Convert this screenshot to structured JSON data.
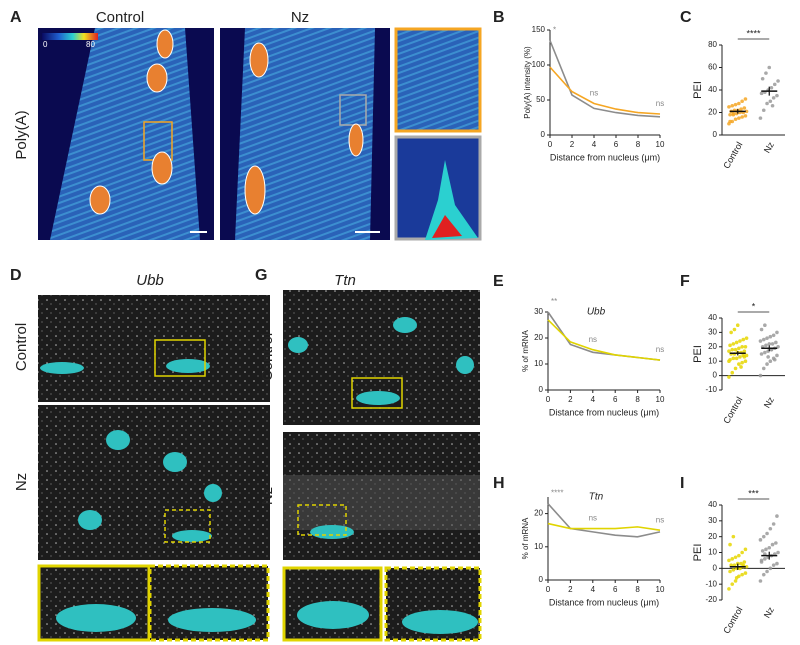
{
  "panel_labels": [
    "A",
    "B",
    "C",
    "D",
    "E",
    "F",
    "G",
    "H",
    "I"
  ],
  "figure_A": {
    "ylabel": "Poly(A)",
    "columns": [
      "Control",
      "Nz"
    ],
    "colorbar": [
      "0",
      "80"
    ]
  },
  "figure_D": {
    "title": "Ubb",
    "rows": [
      "Control",
      "Nz"
    ]
  },
  "figure_G": {
    "title": "Ttn",
    "rows": [
      "Control",
      "Nz"
    ]
  },
  "chart_data": [
    {
      "type": "line",
      "ylabel": "Poly(A) intensity (%)",
      "xlabel": "Distance from nucleus (μm)",
      "x": [
        0,
        2,
        4,
        6,
        8,
        10
      ],
      "xlim": [
        0,
        10
      ],
      "xticks": [
        0,
        2,
        4,
        6,
        8,
        10
      ],
      "ylim": [
        0,
        150
      ],
      "yticks": [
        0,
        50,
        100,
        150
      ],
      "series": [
        {
          "color": "#8c8c8c",
          "values": [
            135,
            57,
            38,
            32,
            28,
            26
          ]
        },
        {
          "color": "#f5a623",
          "values": [
            97,
            62,
            45,
            37,
            32,
            30
          ]
        }
      ],
      "annotations": [
        "*",
        "ns",
        "ns"
      ]
    },
    {
      "type": "strip",
      "ylabel": "PEI",
      "categories": [
        "Control",
        "Nz"
      ],
      "ylim": [
        0,
        80
      ],
      "yticks": [
        0,
        20,
        40,
        60,
        80
      ],
      "colors": [
        "#f5a623",
        "#9a9a9a"
      ],
      "points": [
        [
          10,
          12,
          14,
          15,
          16,
          17,
          18,
          18,
          19,
          20,
          20,
          21,
          21,
          22,
          22,
          23,
          24,
          25,
          26,
          27,
          28,
          30,
          32,
          12,
          19
        ],
        [
          15,
          22,
          28,
          30,
          33,
          35,
          37,
          38,
          40,
          42,
          45,
          48,
          50,
          55,
          60,
          26
        ]
      ],
      "means": [
        21,
        39
      ],
      "errors": [
        2,
        4
      ],
      "annotation": "****"
    },
    {
      "type": "line",
      "title": "Ubb",
      "ylabel": "% of mRNA",
      "xlabel": "Distance from nucleus (μm)",
      "x": [
        0,
        2,
        4,
        6,
        8,
        10
      ],
      "xlim": [
        0,
        10
      ],
      "xticks": [
        0,
        2,
        4,
        6,
        8,
        10
      ],
      "ylim": [
        0,
        30
      ],
      "yticks": [
        0,
        10,
        20,
        30
      ],
      "series": [
        {
          "color": "#8c8c8c",
          "values": [
            30,
            17.5,
            14.5,
            13.5,
            12.5,
            11.5
          ]
        },
        {
          "color": "#e0d400",
          "values": [
            27,
            18.5,
            15.5,
            13.5,
            12.5,
            11.5
          ]
        }
      ],
      "annotations": [
        "**",
        "ns",
        "ns"
      ]
    },
    {
      "type": "strip",
      "ylabel": "PEI",
      "categories": [
        "Control",
        "Nz"
      ],
      "ylim": [
        -10,
        40
      ],
      "yticks": [
        -10,
        0,
        10,
        20,
        30,
        40
      ],
      "colors": [
        "#e6d600",
        "#9a9a9a"
      ],
      "points": [
        [
          -1,
          2,
          5,
          8,
          9,
          10,
          11,
          12,
          12,
          13,
          14,
          14,
          15,
          15,
          16,
          16,
          17,
          17,
          18,
          18,
          19,
          20,
          20,
          21,
          22,
          23,
          24,
          25,
          26,
          30,
          32,
          35,
          6,
          13,
          10
        ],
        [
          0,
          5,
          8,
          10,
          12,
          14,
          15,
          16,
          17,
          18,
          19,
          20,
          20,
          21,
          22,
          22,
          23,
          24,
          25,
          26,
          27,
          28,
          30,
          32,
          35,
          13,
          18,
          11
        ]
      ],
      "means": [
        15.5,
        19
      ],
      "errors": [
        1.5,
        2
      ],
      "annotation": "*"
    },
    {
      "type": "line",
      "title": "Ttn",
      "ylabel": "% of mRNA",
      "xlabel": "Distance from nucleus (μm)",
      "x": [
        0,
        2,
        4,
        6,
        8,
        10
      ],
      "xlim": [
        0,
        10
      ],
      "xticks": [
        0,
        2,
        4,
        6,
        8,
        10
      ],
      "ylim": [
        0,
        25
      ],
      "yticks": [
        0,
        10,
        20
      ],
      "series": [
        {
          "color": "#8c8c8c",
          "values": [
            23,
            15.5,
            14.5,
            13.5,
            13,
            14.5
          ]
        },
        {
          "color": "#e0d400",
          "values": [
            17,
            15.5,
            15.5,
            15.5,
            16,
            15
          ]
        }
      ],
      "annotations": [
        "****",
        "ns",
        "ns"
      ]
    },
    {
      "type": "strip",
      "ylabel": "PEI",
      "categories": [
        "Control",
        "Nz"
      ],
      "ylim": [
        -20,
        40
      ],
      "yticks": [
        -20,
        -10,
        0,
        10,
        20,
        30,
        40
      ],
      "colors": [
        "#e6d600",
        "#9a9a9a"
      ],
      "points": [
        [
          -13,
          -10,
          -8,
          -5,
          -4,
          -3,
          -2,
          -1,
          0,
          0,
          1,
          1,
          2,
          2,
          3,
          3,
          4,
          5,
          6,
          7,
          8,
          10,
          12,
          15,
          20,
          -6,
          0,
          2
        ],
        [
          -8,
          -4,
          -2,
          0,
          2,
          3,
          5,
          6,
          7,
          8,
          9,
          10,
          11,
          12,
          13,
          15,
          16,
          18,
          20,
          22,
          25,
          28,
          33,
          4,
          9
        ]
      ],
      "means": [
        1,
        8
      ],
      "errors": [
        2,
        2.5
      ],
      "annotation": "***"
    }
  ]
}
